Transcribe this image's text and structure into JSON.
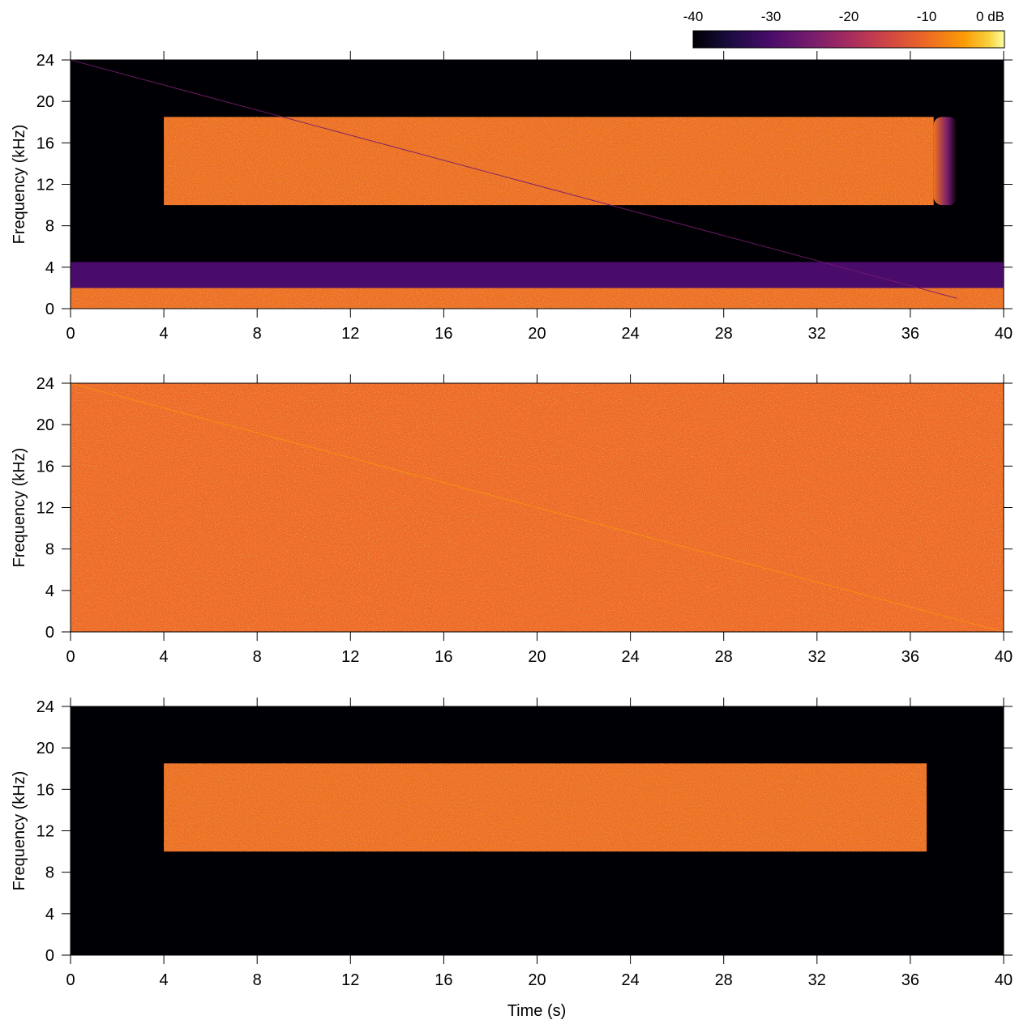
{
  "colorbar": {
    "ticks": [
      "-40",
      "-30",
      "-20",
      "-10",
      "0 dB"
    ]
  },
  "chart_data": [
    {
      "type": "heatmap",
      "title": "",
      "xlabel": "",
      "ylabel": "Frequency  (kHz)",
      "xlim": [
        0,
        40
      ],
      "ylim": [
        0,
        24
      ],
      "xticks": [
        0,
        4,
        8,
        12,
        16,
        20,
        24,
        28,
        32,
        36,
        40
      ],
      "yticks": [
        0,
        4,
        8,
        12,
        16,
        20,
        24
      ],
      "color_scale_db": [
        -40,
        0
      ],
      "colormap": "inferno",
      "background_db": -40,
      "features": [
        {
          "kind": "band",
          "t_start": 4,
          "t_end": 37,
          "f_low": 10,
          "f_high": 18.5,
          "level_db": -9,
          "fade_out_to": 38
        },
        {
          "kind": "band",
          "t_start": 0,
          "t_end": 40,
          "f_low": 0,
          "f_high": 2,
          "level_db": -9
        },
        {
          "kind": "band",
          "t_start": 0,
          "t_end": 40,
          "f_low": 2,
          "f_high": 4.5,
          "level_db": -30
        },
        {
          "kind": "sweep",
          "t_start": 0,
          "t_end": 38,
          "f_start": 24,
          "f_end": 1,
          "level_db": -25
        }
      ]
    },
    {
      "type": "heatmap",
      "title": "",
      "xlabel": "",
      "ylabel": "Frequency  (kHz)",
      "xlim": [
        0,
        40
      ],
      "ylim": [
        0,
        24
      ],
      "xticks": [
        0,
        4,
        8,
        12,
        16,
        20,
        24,
        28,
        32,
        36,
        40
      ],
      "yticks": [
        0,
        4,
        8,
        12,
        16,
        20,
        24
      ],
      "color_scale_db": [
        -40,
        0
      ],
      "colormap": "inferno",
      "background_db": -10,
      "features": [
        {
          "kind": "sweep",
          "t_start": 0,
          "t_end": 40,
          "f_start": 24,
          "f_end": 0,
          "level_db": -6
        }
      ]
    },
    {
      "type": "heatmap",
      "title": "",
      "xlabel": "Time  (s)",
      "ylabel": "Frequency  (kHz)",
      "xlim": [
        0,
        40
      ],
      "ylim": [
        0,
        24
      ],
      "xticks": [
        0,
        4,
        8,
        12,
        16,
        20,
        24,
        28,
        32,
        36,
        40
      ],
      "yticks": [
        0,
        4,
        8,
        12,
        16,
        20,
        24
      ],
      "color_scale_db": [
        -40,
        0
      ],
      "colormap": "inferno",
      "background_db": -40,
      "features": [
        {
          "kind": "band",
          "t_start": 4,
          "t_end": 36.7,
          "f_low": 10,
          "f_high": 18.5,
          "level_db": -9
        }
      ]
    }
  ]
}
